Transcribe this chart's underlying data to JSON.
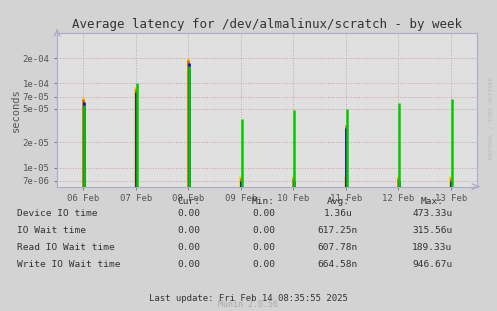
{
  "title": "Average latency for /dev/almalinux/scratch - by week",
  "ylabel": "seconds",
  "bg_color": "#d3d3d3",
  "plot_bg_color": "#e0e0e0",
  "grid_color_dot": "#cc8888",
  "grid_color_dash": "#ddaaaa",
  "watermark": "RRDTOOL / TOBI OETIKER",
  "munin_version": "Munin 2.0.56",
  "last_update": "Last update: Fri Feb 14 08:35:55 2025",
  "x_tick_labels": [
    "06 Feb",
    "07 Feb",
    "08 Feb",
    "09 Feb",
    "10 Feb",
    "11 Feb",
    "12 Feb",
    "13 Feb"
  ],
  "ylim_log_min": 6e-06,
  "ylim_log_max": 0.0004,
  "yticks": [
    7e-06,
    1e-05,
    2e-05,
    5e-05,
    7e-05,
    0.0001,
    0.0002
  ],
  "ytick_labels": [
    "7e-06",
    "1e-05",
    "2e-05",
    "5e-05",
    "7e-05",
    "1e-04",
    "2e-04"
  ],
  "series_order": [
    "write",
    "read",
    "io",
    "device"
  ],
  "write_y": [
    7e-05,
    9e-05,
    0.0002,
    8e-06,
    8e-06,
    8e-06,
    8e-06,
    8e-06
  ],
  "read_y": [
    6.5e-05,
    8.5e-05,
    0.00019,
    7.5e-06,
    7.5e-06,
    3.2e-05,
    7.5e-06,
    7.5e-06
  ],
  "io_y": [
    6e-05,
    8e-05,
    0.000175,
    7e-06,
    7e-06,
    3e-05,
    7e-06,
    7e-06
  ],
  "device_y": [
    5.5e-05,
    0.0001,
    0.00016,
    3.8e-05,
    4.8e-05,
    5e-05,
    5.8e-05,
    6.5e-05
  ],
  "color_write": "#ffcc00",
  "color_read": "#cc6600",
  "color_io": "#0000cc",
  "color_device": "#00cc00",
  "legend_colors": [
    "#00cc00",
    "#0000cc",
    "#cc6600",
    "#ffcc00"
  ],
  "legend_labels": [
    "Device IO time",
    "IO Wait time",
    "Read IO Wait time",
    "Write IO Wait time"
  ],
  "table_headers": [
    "Cur:",
    "Min:",
    "Avg:",
    "Max:"
  ],
  "table_rows": [
    [
      "Device IO time",
      "0.00",
      "0.00",
      "1.36u",
      "473.33u"
    ],
    [
      "IO Wait time",
      "0.00",
      "0.00",
      "617.25n",
      "315.56u"
    ],
    [
      "Read IO Wait time",
      "0.00",
      "0.00",
      "607.78n",
      "189.33u"
    ],
    [
      "Write IO Wait time",
      "0.00",
      "0.00",
      "664.58n",
      "946.67u"
    ]
  ]
}
